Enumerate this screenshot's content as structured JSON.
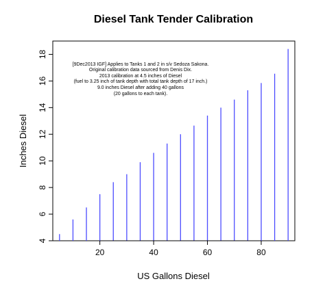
{
  "chart_data": {
    "type": "bar",
    "title": "Diesel Tank Tender Calibration",
    "xlabel": "US Gallons Diesel",
    "ylabel": "Inches Diesel",
    "xlim": [
      2.5,
      92.5
    ],
    "ylim": [
      4,
      19
    ],
    "xticks": [
      20,
      40,
      60,
      80
    ],
    "yticks": [
      4,
      6,
      8,
      10,
      12,
      14,
      16,
      18
    ],
    "bar_color": "#4b4bff",
    "grid": false,
    "legend": "none",
    "annotation": [
      "[9Dec2013 IGF] Applies to Tanks 1 and 2 in s/v Sedoza Sakona.",
      "Original calibration data sourced from Denis Dix.",
      "2013 calibration at 4.5 inches of Diesel",
      "(fuel to 3.25 inch of tank depth with total tank depth of 17 inch.)",
      "9.0 inches Diesel after adding 40 gallons",
      "(20 gallons to each tank)."
    ],
    "x": [
      5,
      10,
      15,
      20,
      25,
      30,
      35,
      40,
      45,
      50,
      55,
      60,
      65,
      70,
      75,
      80,
      85,
      90
    ],
    "values": [
      4.5,
      5.6,
      6.5,
      7.5,
      8.4,
      9.0,
      9.9,
      10.6,
      11.3,
      12.0,
      12.65,
      13.4,
      14.0,
      14.6,
      15.3,
      15.85,
      16.55,
      18.4
    ]
  }
}
